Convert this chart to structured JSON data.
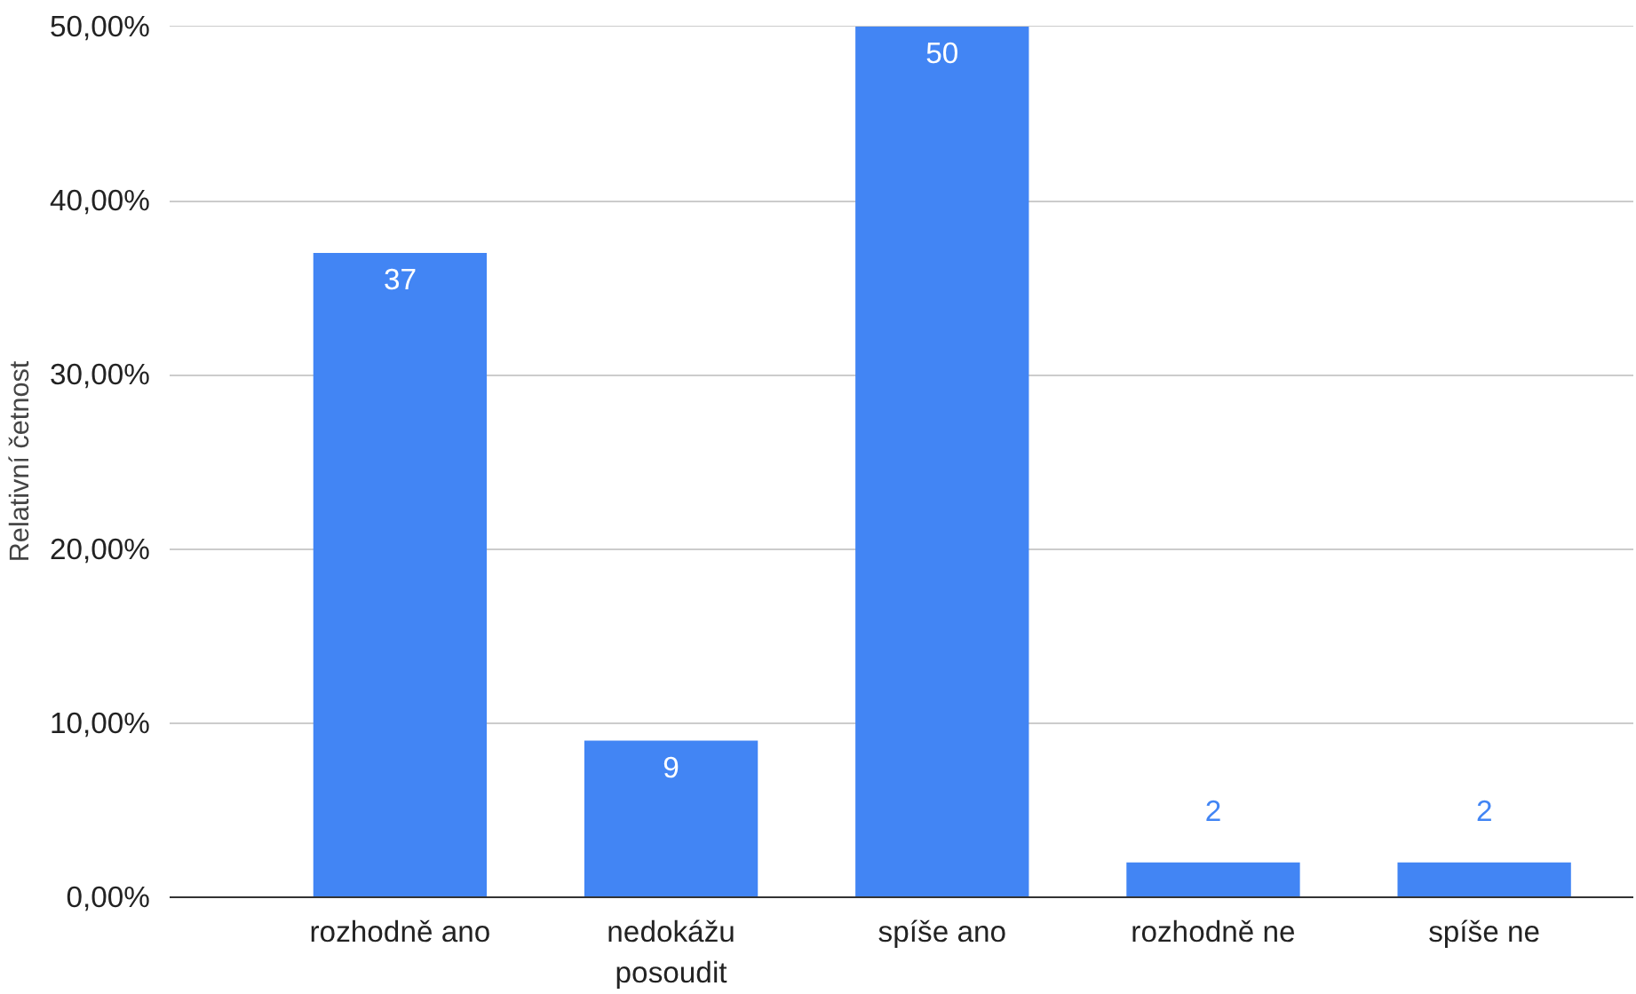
{
  "chart_data": {
    "type": "bar",
    "ylabel": "Relativní četnost",
    "categories": [
      "rozhodně ano",
      "nedokážu posoudit",
      "spíše ano",
      "rozhodně ne",
      "spíše ne"
    ],
    "values": [
      37,
      9,
      50,
      2,
      2
    ],
    "color": "#4285f4",
    "data_labels": true,
    "ylim": [
      0,
      50
    ],
    "yticks": [
      {
        "value": 0,
        "label": "0,00%"
      },
      {
        "value": 10,
        "label": "10,00%"
      },
      {
        "value": 20,
        "label": "20,00%"
      },
      {
        "value": 30,
        "label": "30,00%"
      },
      {
        "value": 40,
        "label": "40,00%"
      },
      {
        "value": 50,
        "label": "50,00%"
      }
    ],
    "grid": "y"
  }
}
